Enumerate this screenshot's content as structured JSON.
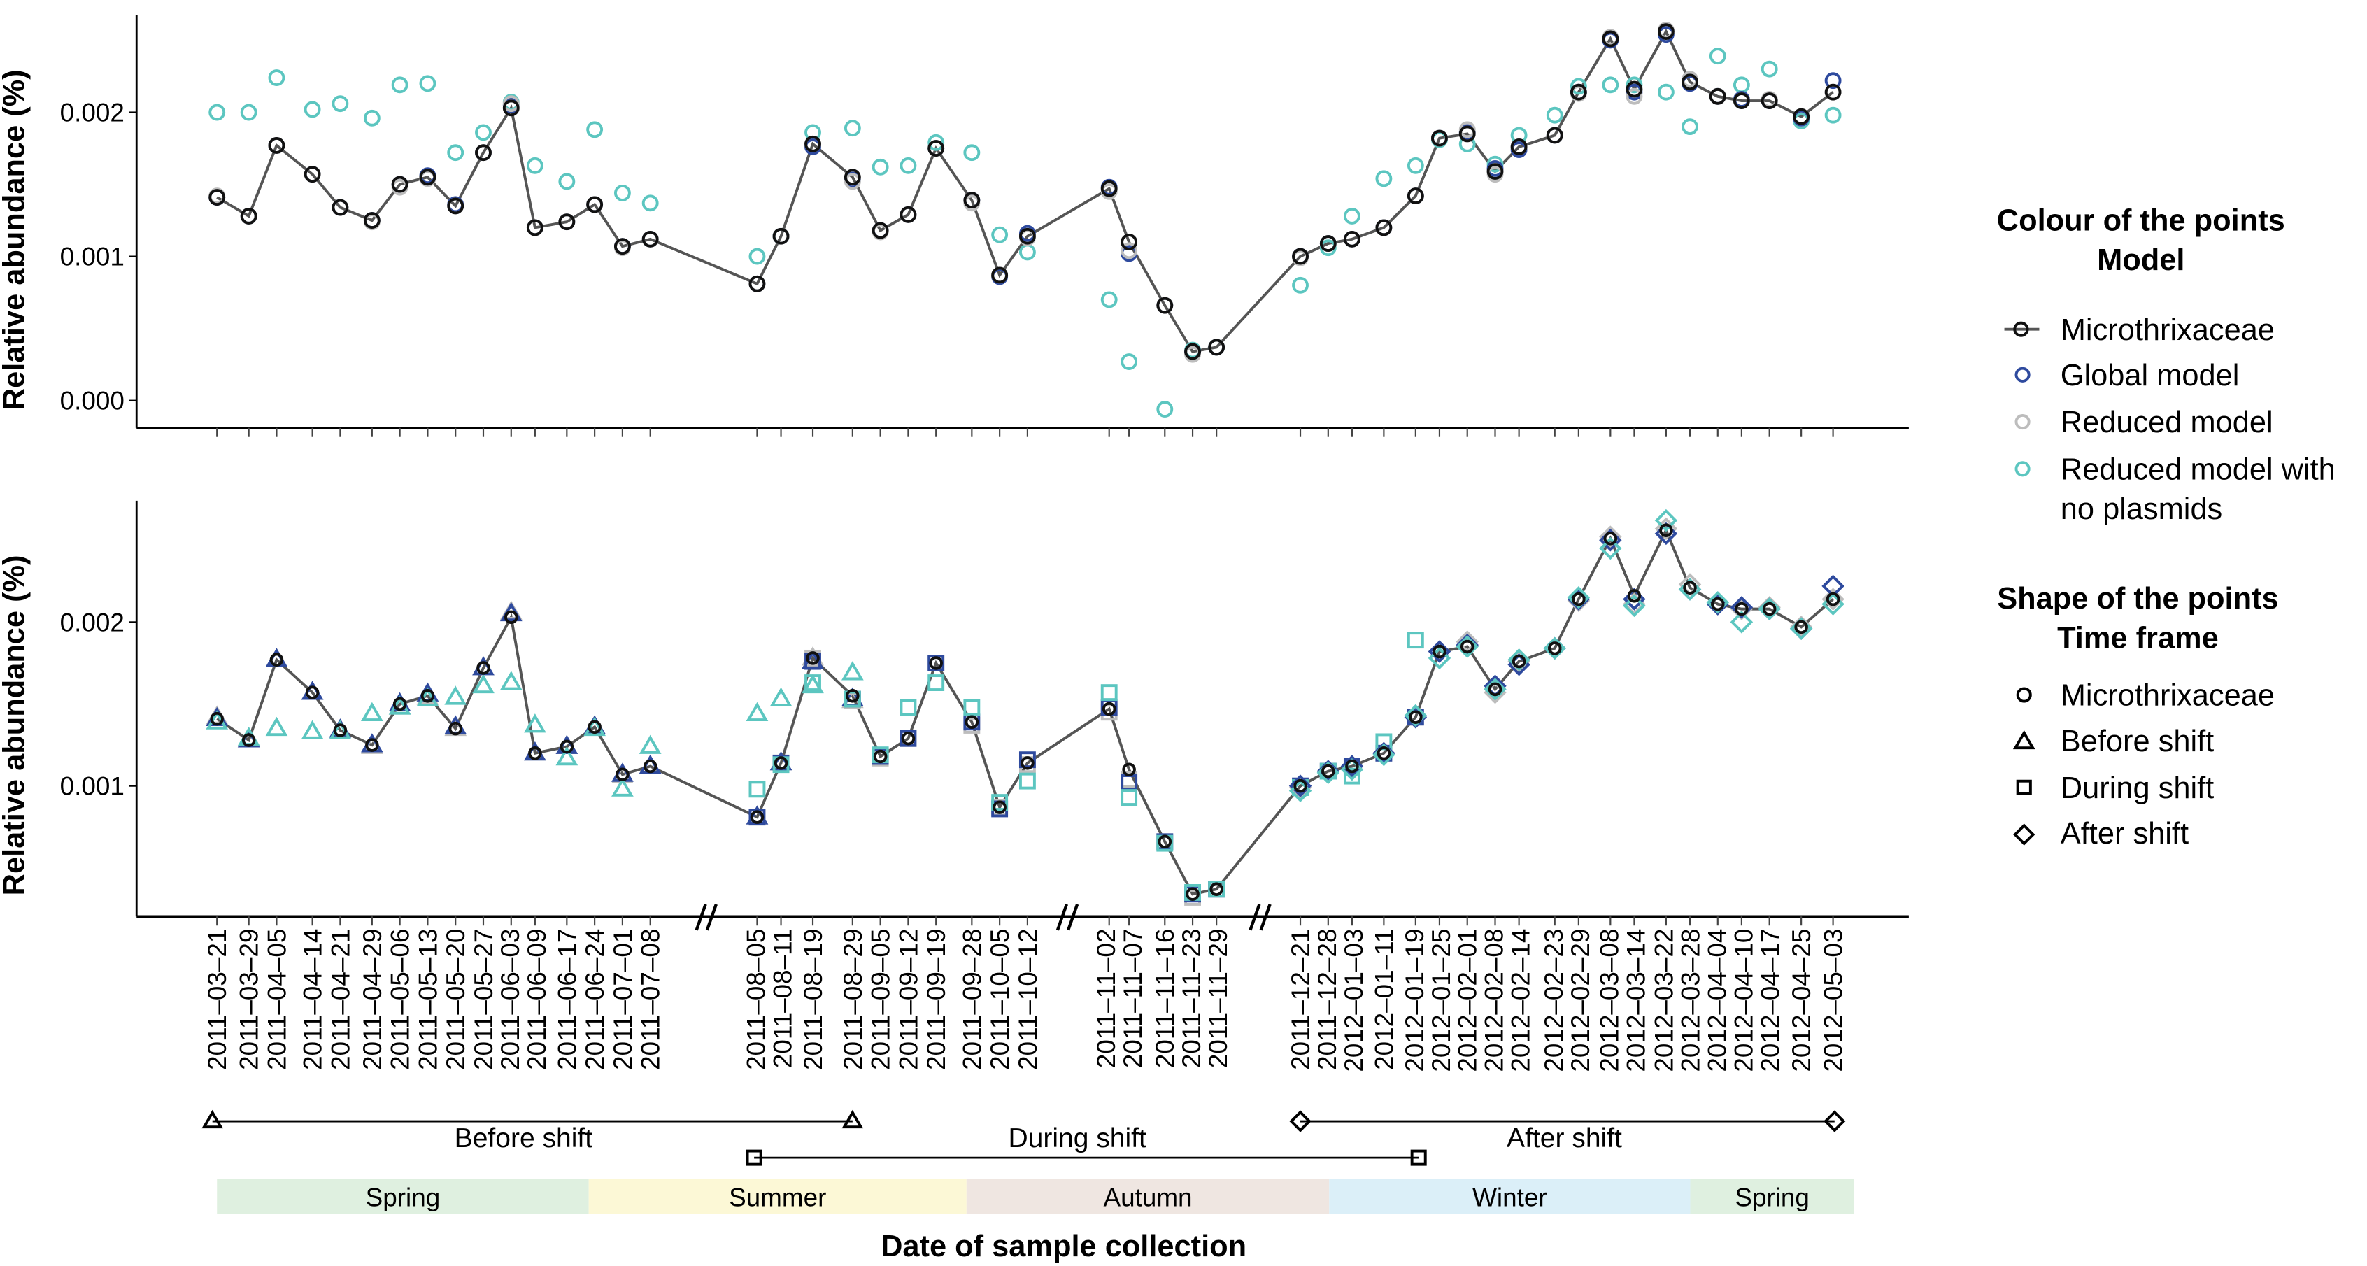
{
  "chart_data": [
    {
      "type": "line",
      "panel": "top",
      "ylabel": "Relative abundance (%)",
      "ylim": [
        -0.00018,
        0.00272
      ],
      "yticks": [
        "0.000",
        "0.001",
        "0.002"
      ],
      "ytick_values": [
        0,
        0.001,
        0.002
      ],
      "grid": false,
      "series": [
        {
          "name": "Microthrixaceae",
          "color": "#111111",
          "line_color": "#555555",
          "values": [
            0.00141,
            0.00128,
            0.00177,
            0.00157,
            0.00134,
            0.00125,
            0.0015,
            0.00155,
            0.00135,
            0.00172,
            0.00203,
            0.0012,
            0.00124,
            0.00136,
            0.00107,
            0.00112,
            0.00081,
            0.00114,
            0.00178,
            0.00155,
            0.00118,
            0.00129,
            0.00175,
            0.00139,
            0.00087,
            0.00114,
            0.00147,
            0.0011,
            0.00066,
            0.00034,
            0.00037,
            0.001,
            0.00109,
            0.00112,
            0.0012,
            0.00142,
            0.00182,
            0.00185,
            0.00159,
            0.00176,
            0.00184,
            0.00214,
            0.00251,
            0.00216,
            0.00256,
            0.00221,
            0.00211,
            0.00208,
            0.00208,
            0.00197,
            0.00214
          ]
        },
        {
          "name": "Global model",
          "color": "#2e4a9e",
          "values": [
            0.00141,
            0.00128,
            0.00177,
            0.00157,
            0.00134,
            0.00125,
            0.0015,
            0.00156,
            0.00136,
            0.00172,
            0.00205,
            0.0012,
            0.00124,
            0.00136,
            0.00107,
            0.00112,
            0.00081,
            0.00114,
            0.00176,
            0.00153,
            0.00118,
            0.00129,
            0.00175,
            0.00139,
            0.00086,
            0.00116,
            0.00148,
            0.00102,
            0.00066,
            0.00034,
            0.00037,
            0.001,
            0.00109,
            0.00112,
            0.0012,
            0.00142,
            0.00182,
            0.00186,
            0.00161,
            0.00174,
            0.00184,
            0.00214,
            0.0025,
            0.00214,
            0.00254,
            0.0022,
            0.00211,
            0.00209,
            0.00208,
            0.00196,
            0.00222
          ]
        },
        {
          "name": "Reduced model",
          "color": "#bdbdbd",
          "values": [
            0.00142,
            0.00128,
            0.00177,
            0.00157,
            0.00134,
            0.00124,
            0.00148,
            0.00154,
            0.00135,
            0.00172,
            0.00206,
            0.0012,
            0.00124,
            0.00136,
            0.00106,
            0.00112,
            0.00081,
            0.00114,
            0.00178,
            0.00152,
            0.00117,
            0.00129,
            0.00175,
            0.00137,
            0.00087,
            0.00113,
            0.00145,
            0.00104,
            0.00066,
            0.00032,
            0.00037,
            0.00099,
            0.00109,
            0.00112,
            0.0012,
            0.00142,
            0.00182,
            0.00188,
            0.00157,
            0.00176,
            0.00184,
            0.00213,
            0.00252,
            0.00211,
            0.00257,
            0.00223,
            0.00211,
            0.00208,
            0.00209,
            0.00197,
            0.00214
          ]
        },
        {
          "name": "Reduced model with no plasmids",
          "color": "#5cc6c0",
          "values": [
            0.002,
            0.002,
            0.00224,
            0.00202,
            0.00206,
            0.00196,
            0.00219,
            0.0022,
            0.00172,
            0.00186,
            0.00207,
            0.00163,
            0.00152,
            0.00188,
            0.00144,
            0.00137,
            0.001,
            0.00114,
            0.00186,
            0.00189,
            0.00162,
            0.00163,
            0.00179,
            0.00172,
            0.00115,
            0.00103,
            0.0007,
            0.00027,
            -6e-05,
            0.00035,
            0.00037,
            0.0008,
            0.00106,
            0.00128,
            0.00154,
            0.00163,
            0.00181,
            0.00178,
            0.00164,
            0.00184,
            0.00198,
            0.00218,
            0.00219,
            0.00219,
            0.00214,
            0.0019,
            0.00239,
            0.00219,
            0.0023,
            0.00194,
            0.00198
          ]
        }
      ]
    },
    {
      "type": "line",
      "panel": "bottom",
      "ylabel": "Relative abundance (%)",
      "ylim": [
        0.00021,
        0.00275
      ],
      "yticks": [
        "0.001",
        "0.002"
      ],
      "ytick_values": [
        0.001,
        0.002
      ],
      "grid": false,
      "microthrixaceae_series": "Microthrixaceae",
      "time_frames": [
        {
          "name": "Before shift",
          "shape": "triangle",
          "first_date": "2011-03-21",
          "last_date": "2011-08-29",
          "no_plasmid_values": [
            0.00139,
            0.00129,
            0.00135,
            0.00133,
            0.00133,
            0.00144,
            0.00148,
            0.00153,
            0.00154,
            0.00161,
            0.00163,
            0.00137,
            0.00117,
            0.00135,
            0.00098,
            0.00124,
            0.00144,
            0.00153,
            0.00161,
            0.00169
          ]
        },
        {
          "name": "During shift",
          "shape": "square",
          "first_date": "2011-08-05",
          "last_date": "2012-01-19",
          "no_plasmid_values": [
            0.00098,
            0.00113,
            0.00163,
            0.00153,
            0.00119,
            0.00148,
            0.00163,
            0.00148,
            0.0009,
            0.00103,
            0.00157,
            0.00093,
            0.00065,
            0.00035,
            0.00037,
            0.00099,
            0.00109,
            0.00106,
            0.00127,
            0.00189
          ]
        },
        {
          "name": "After shift",
          "shape": "diamond",
          "first_date": "2011-12-21",
          "last_date": "2012-05-03",
          "no_plasmid_values": [
            0.00097,
            0.00108,
            0.0011,
            0.00119,
            0.00143,
            0.00178,
            0.00185,
            0.00159,
            0.00177,
            0.00184,
            0.00215,
            0.00245,
            0.0021,
            0.00262,
            0.0022,
            0.00212,
            0.002,
            0.00208,
            0.00196,
            0.00211
          ]
        }
      ]
    }
  ],
  "x": [
    "2011-03-21",
    "2011-03-29",
    "2011-04-05",
    "2011-04-14",
    "2011-04-21",
    "2011-04-29",
    "2011-05-06",
    "2011-05-13",
    "2011-05-20",
    "2011-05-27",
    "2011-06-03",
    "2011-06-09",
    "2011-06-17",
    "2011-06-24",
    "2011-07-01",
    "2011-07-08",
    "2011-08-05",
    "2011-08-11",
    "2011-08-19",
    "2011-08-29",
    "2011-09-05",
    "2011-09-12",
    "2011-09-19",
    "2011-09-28",
    "2011-10-05",
    "2011-10-12",
    "2011-11-02",
    "2011-11-07",
    "2011-11-16",
    "2011-11-23",
    "2011-11-29",
    "2011-12-21",
    "2011-12-28",
    "2012-01-03",
    "2012-01-11",
    "2012-01-19",
    "2012-01-25",
    "2012-02-01",
    "2012-02-08",
    "2012-02-14",
    "2012-02-23",
    "2012-02-29",
    "2012-03-08",
    "2012-03-14",
    "2012-03-22",
    "2012-03-28",
    "2012-04-04",
    "2012-04-10",
    "2012-04-17",
    "2012-04-25",
    "2012-05-03"
  ],
  "xlabel": "Date of sample collection",
  "axis_breaks": 3,
  "seasons": [
    {
      "label": "Spring",
      "start": "2011-03-21",
      "end": "2011-06-21",
      "color": "#dff0e0"
    },
    {
      "label": "Summer",
      "start": "2011-06-21",
      "end": "2011-09-22",
      "color": "#fcf8d6"
    },
    {
      "label": "Autumn",
      "start": "2011-09-22",
      "end": "2011-12-21",
      "color": "#efe6e1"
    },
    {
      "label": "Winter",
      "start": "2011-12-21",
      "end": "2012-03-20",
      "color": "#dbeff8"
    },
    {
      "label": "Spring",
      "start": "2012-03-20",
      "end": "2012-05-03",
      "color": "#dff0e0"
    }
  ],
  "legend": {
    "colour_title_1": "Colour of the points",
    "colour_title_2": "Model",
    "colour_items": [
      "Microthrixaceae",
      "Global model",
      "Reduced model",
      "Reduced model with",
      "no plasmids"
    ],
    "shape_title_1": "Shape of the points",
    "shape_title_2": "Time frame",
    "shape_items": [
      "Microthrixaceae",
      "Before shift",
      "During shift",
      "After shift"
    ],
    "placement": "right"
  }
}
